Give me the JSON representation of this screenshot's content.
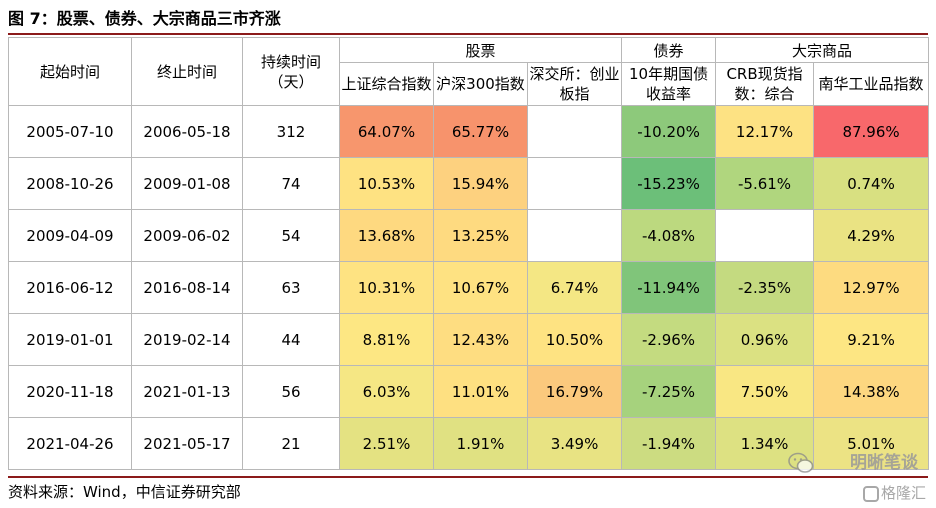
{
  "title": "图 7：股票、债券、大宗商品三市齐涨",
  "source": "资料来源：Wind，中信证券研究部",
  "watermark": "明晰笔谈",
  "watermark2": "格隆汇",
  "header": {
    "start": "起始时间",
    "end": "终止时间",
    "days": "持续时间（天）",
    "stocks": "股票",
    "bonds": "债券",
    "commodities": "大宗商品",
    "cols": [
      "上证综合指数",
      "沪深300指数",
      "深交所：创业板指",
      "10年期国债收益率",
      "CRB现货指数：综合",
      "南华工业品指数"
    ]
  },
  "rows": [
    {
      "start": "2005-07-10",
      "end": "2006-05-18",
      "days": "312",
      "values": [
        "64.07%",
        "65.77%",
        "",
        "-10.20%",
        "12.17%",
        "87.96%"
      ],
      "colors": [
        "#f7966d",
        "#f7936c",
        "#ffffff",
        "#8dc97b",
        "#fde283",
        "#f8686b"
      ]
    },
    {
      "start": "2008-10-26",
      "end": "2009-01-08",
      "days": "74",
      "values": [
        "10.53%",
        "15.94%",
        "",
        "-15.23%",
        "-5.61%",
        "0.74%"
      ],
      "colors": [
        "#fee282",
        "#fdd17f",
        "#ffffff",
        "#6cbf79",
        "#b0d67e",
        "#d8e081"
      ]
    },
    {
      "start": "2009-04-09",
      "end": "2009-06-02",
      "days": "54",
      "values": [
        "13.68%",
        "13.25%",
        "",
        "-4.08%",
        "",
        "4.29%"
      ],
      "colors": [
        "#fed980",
        "#feda80",
        "#ffffff",
        "#bcd97f",
        "#ffffff",
        "#eae383"
      ]
    },
    {
      "start": "2016-06-12",
      "end": "2016-08-14",
      "days": "63",
      "values": [
        "10.31%",
        "10.67%",
        "6.74%",
        "-11.94%",
        "-2.35%",
        "12.97%"
      ],
      "colors": [
        "#fee382",
        "#fee282",
        "#f4e784",
        "#80c57a",
        "#c4da80",
        "#fddb80"
      ]
    },
    {
      "start": "2019-01-01",
      "end": "2019-02-14",
      "days": "44",
      "values": [
        "8.81%",
        "12.43%",
        "10.50%",
        "-2.96%",
        "0.96%",
        "9.21%"
      ],
      "colors": [
        "#fde783",
        "#fedd81",
        "#fee382",
        "#c4db80",
        "#dbe182",
        "#fde683"
      ]
    },
    {
      "start": "2020-11-18",
      "end": "2021-01-13",
      "days": "56",
      "values": [
        "6.03%",
        "11.01%",
        "16.79%",
        "-7.25%",
        "7.50%",
        "14.38%"
      ],
      "colors": [
        "#f5e784",
        "#fee081",
        "#fbc97d",
        "#a6d27d",
        "#f9e783",
        "#fdd780"
      ]
    },
    {
      "start": "2021-04-26",
      "end": "2021-05-17",
      "days": "21",
      "values": [
        "2.51%",
        "1.91%",
        "3.49%",
        "-1.94%",
        "1.34%",
        "5.01%"
      ],
      "colors": [
        "#e4e282",
        "#e0e182",
        "#e8e383",
        "#ccdc81",
        "#dde182",
        "#ece384"
      ]
    }
  ]
}
